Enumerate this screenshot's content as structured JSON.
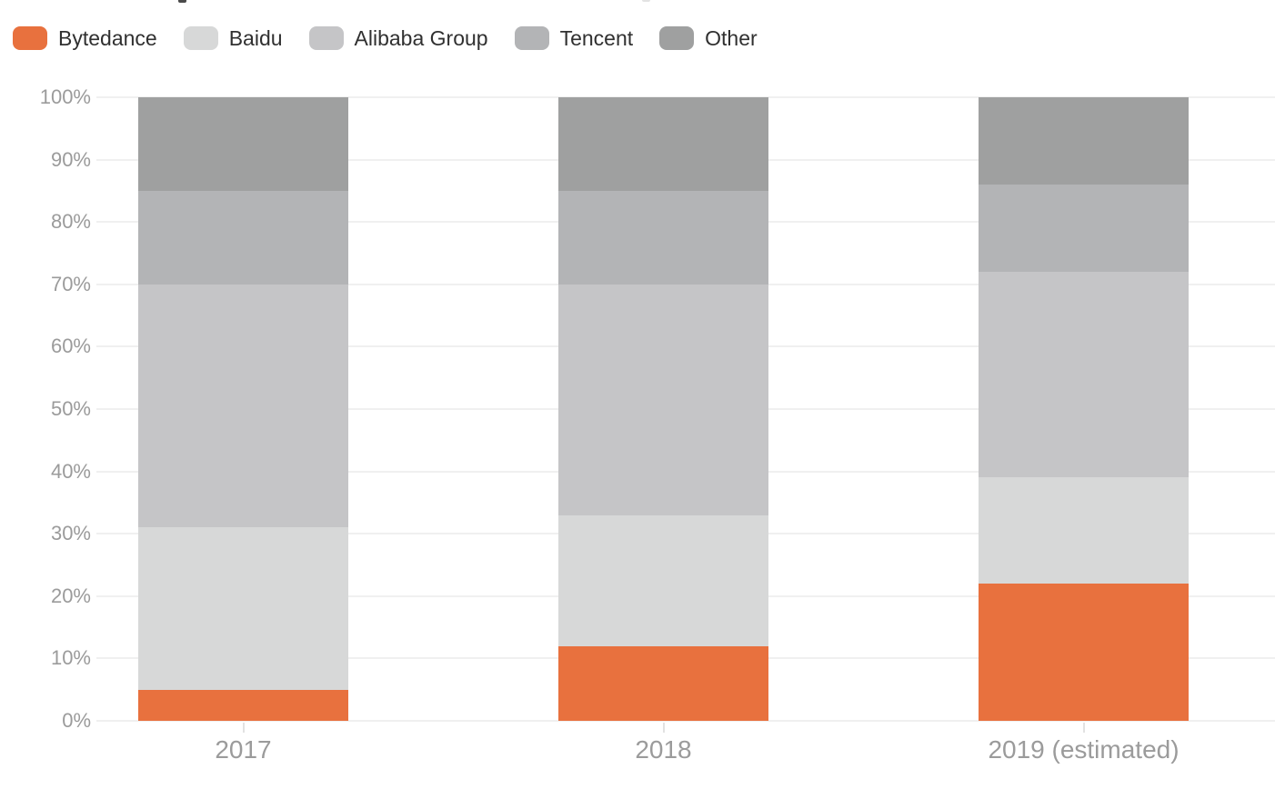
{
  "legend": {
    "items": [
      {
        "label": "Bytedance",
        "color": "#E8713E"
      },
      {
        "label": "Baidu",
        "color": "#D7D8D8"
      },
      {
        "label": "Alibaba Group",
        "color": "#C5C5C7"
      },
      {
        "label": "Tencent",
        "color": "#B3B4B6"
      },
      {
        "label": "Other",
        "color": "#9FA0A0"
      }
    ]
  },
  "chart_data": {
    "type": "bar",
    "stacked": true,
    "unit": "%",
    "categories": [
      "2017",
      "2018",
      "2019 (estimated)"
    ],
    "series": [
      {
        "name": "Bytedance",
        "color": "#E8713E",
        "values": [
          5,
          12,
          22
        ]
      },
      {
        "name": "Baidu",
        "color": "#D7D8D8",
        "values": [
          26,
          21,
          17
        ]
      },
      {
        "name": "Alibaba Group",
        "color": "#C5C5C7",
        "values": [
          39,
          37,
          33
        ]
      },
      {
        "name": "Tencent",
        "color": "#B3B4B6",
        "values": [
          15,
          15,
          14
        ]
      },
      {
        "name": "Other",
        "color": "#9FA0A0",
        "values": [
          15,
          15,
          14
        ]
      }
    ],
    "ylim": [
      0,
      100
    ],
    "y_tick_step": 10,
    "y_tick_labels": [
      "0%",
      "10%",
      "20%",
      "30%",
      "40%",
      "50%",
      "60%",
      "70%",
      "80%",
      "90%",
      "100%"
    ],
    "grid": true,
    "legend_position": "top-left"
  },
  "colors": {
    "background": "#FFFFFF",
    "grid": "#F0F0F0",
    "axis_text": "#9B9B9B",
    "legend_text": "#303030",
    "x_tick": "#E2E2E2",
    "accent": "#E8713E"
  }
}
